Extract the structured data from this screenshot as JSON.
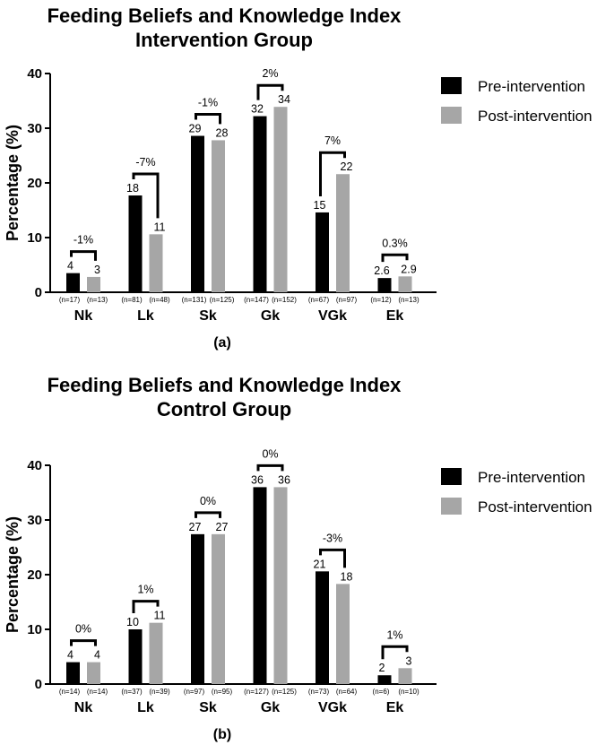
{
  "chart_data": [
    {
      "type": "bar",
      "title": "Feeding Beliefs and Knowledge Index",
      "subtitle": "Intervention Group",
      "panel_label": "(a)",
      "ylabel": "Percentage (%)",
      "xlabel": "",
      "ylim": [
        0,
        40
      ],
      "yticks": [
        0,
        10,
        20,
        30,
        40
      ],
      "grid": false,
      "legend_position": "right",
      "categories": [
        "Nk",
        "Lk",
        "Sk",
        "Gk",
        "VGk",
        "Ek"
      ],
      "series": [
        {
          "name": "Pre-intervention",
          "color": "#000000",
          "values": [
            3.5,
            17.7,
            28.6,
            32.2,
            14.6,
            2.6
          ],
          "value_labels": [
            "4",
            "18",
            "29",
            "32",
            "15",
            "2.6"
          ],
          "n_labels": [
            "(n=17)",
            "(n=81)",
            "(n=131)",
            "(n=147)",
            "(n=67)",
            "(n=12)"
          ]
        },
        {
          "name": "Post-intervention",
          "color": "#a6a6a6",
          "values": [
            2.8,
            10.6,
            27.8,
            33.9,
            21.6,
            2.9
          ],
          "value_labels": [
            "3",
            "11",
            "28",
            "34",
            "22",
            "2.9"
          ],
          "n_labels": [
            "(n=13)",
            "(n=48)",
            "(n=125)",
            "(n=152)",
            "(n=97)",
            "(n=13)"
          ]
        }
      ],
      "differences": [
        "-1%",
        "-7%",
        "-1%",
        "2%",
        "7%",
        "0.3%"
      ]
    },
    {
      "type": "bar",
      "title": "Feeding Beliefs and Knowledge Index",
      "subtitle": "Control Group",
      "panel_label": "(b)",
      "ylabel": "Percentage (%)",
      "xlabel": "",
      "ylim": [
        0,
        40
      ],
      "yticks": [
        0,
        10,
        20,
        30,
        40
      ],
      "grid": false,
      "legend_position": "right",
      "categories": [
        "Nk",
        "Lk",
        "Sk",
        "Gk",
        "VGk",
        "Ek"
      ],
      "series": [
        {
          "name": "Pre-intervention",
          "color": "#000000",
          "values": [
            4,
            10,
            27.4,
            36,
            20.6,
            1.6
          ],
          "value_labels": [
            "4",
            "10",
            "27",
            "36",
            "21",
            "2"
          ],
          "n_labels": [
            "(n=14)",
            "(n=37)",
            "(n=97)",
            "(n=127)",
            "(n=73)",
            "(n=6)"
          ]
        },
        {
          "name": "Post-intervention",
          "color": "#a6a6a6",
          "values": [
            4,
            11.2,
            27.4,
            36,
            18.3,
            2.9
          ],
          "value_labels": [
            "4",
            "11",
            "27",
            "36",
            "18",
            "3"
          ],
          "n_labels": [
            "(n=14)",
            "(n=39)",
            "(n=95)",
            "(n=125)",
            "(n=64)",
            "(n=10)"
          ]
        }
      ],
      "differences": [
        "0%",
        "1%",
        "0%",
        "0%",
        "-3%",
        "1%"
      ]
    }
  ]
}
